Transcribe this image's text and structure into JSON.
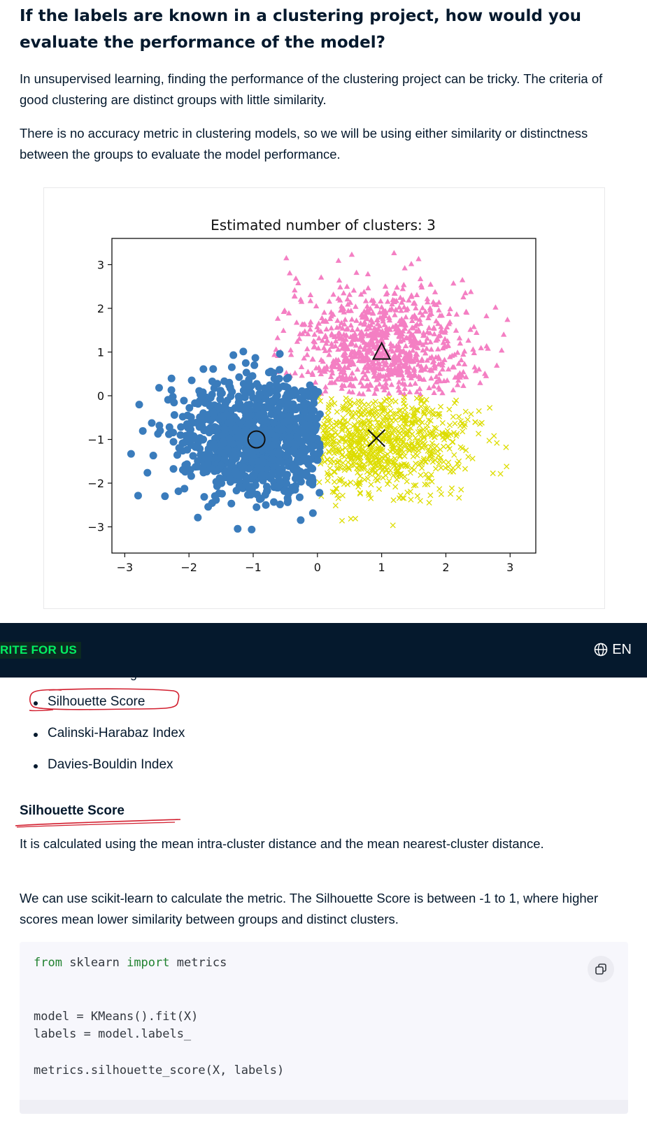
{
  "article": {
    "heading": "If the labels are known in a clustering project, how would you evaluate the performance of the model?",
    "para1": "In unsupervised learning, finding the performance of the clustering project can be tricky. The criteria of good clustering are distinct groups with little similarity.",
    "para2": "There is no accuracy metric in clustering models, so we will be using either similarity or distinctness between the groups to evaluate the model performance."
  },
  "chart_data": {
    "type": "scatter",
    "title": "Estimated number of clusters: 3",
    "xlim": [
      -3.2,
      3.4
    ],
    "ylim": [
      -3.6,
      3.6
    ],
    "xticks": [
      -3,
      -2,
      -1,
      0,
      1,
      2,
      3
    ],
    "yticks": [
      -3,
      -2,
      -1,
      0,
      1,
      2,
      3
    ],
    "grid": false,
    "series": [
      {
        "marker": "circle",
        "color": "#3a7cbc",
        "center": [
          -0.95,
          -1.0
        ],
        "region": "x < 0.05"
      },
      {
        "marker": "triangle",
        "color": "#f47fc3",
        "center": [
          1.0,
          1.0
        ],
        "region": "y > 0"
      },
      {
        "marker": "x",
        "color": "#dddd00",
        "center": [
          0.92,
          -0.97
        ],
        "region": "x > 0, y < 0"
      }
    ]
  },
  "navbar": {
    "link": "RITE FOR US",
    "language": "EN"
  },
  "metrics_list": {
    "partial_text": "g",
    "items": [
      "Silhouette Score",
      "Calinski-Harabaz Index",
      "Davies-Bouldin Index"
    ]
  },
  "silhouette": {
    "heading": "Silhouette Score",
    "para1": "It is calculated using the mean intra-cluster distance and the mean nearest-cluster distance.",
    "para2": "We can use scikit-learn to calculate the metric. The Silhouette Score is between -1 to 1, where higher scores mean lower similarity between groups and distinct clusters."
  },
  "code": {
    "line1_kw1": "from",
    "line1_mid": " sklearn ",
    "line1_kw2": "import",
    "line1_end": " metrics",
    "line2": "model = KMeans().fit(X)",
    "line3": "labels = model.labels_",
    "line4": "metrics.silhouette_score(X, labels)",
    "copy_icon": "copy-icon"
  }
}
